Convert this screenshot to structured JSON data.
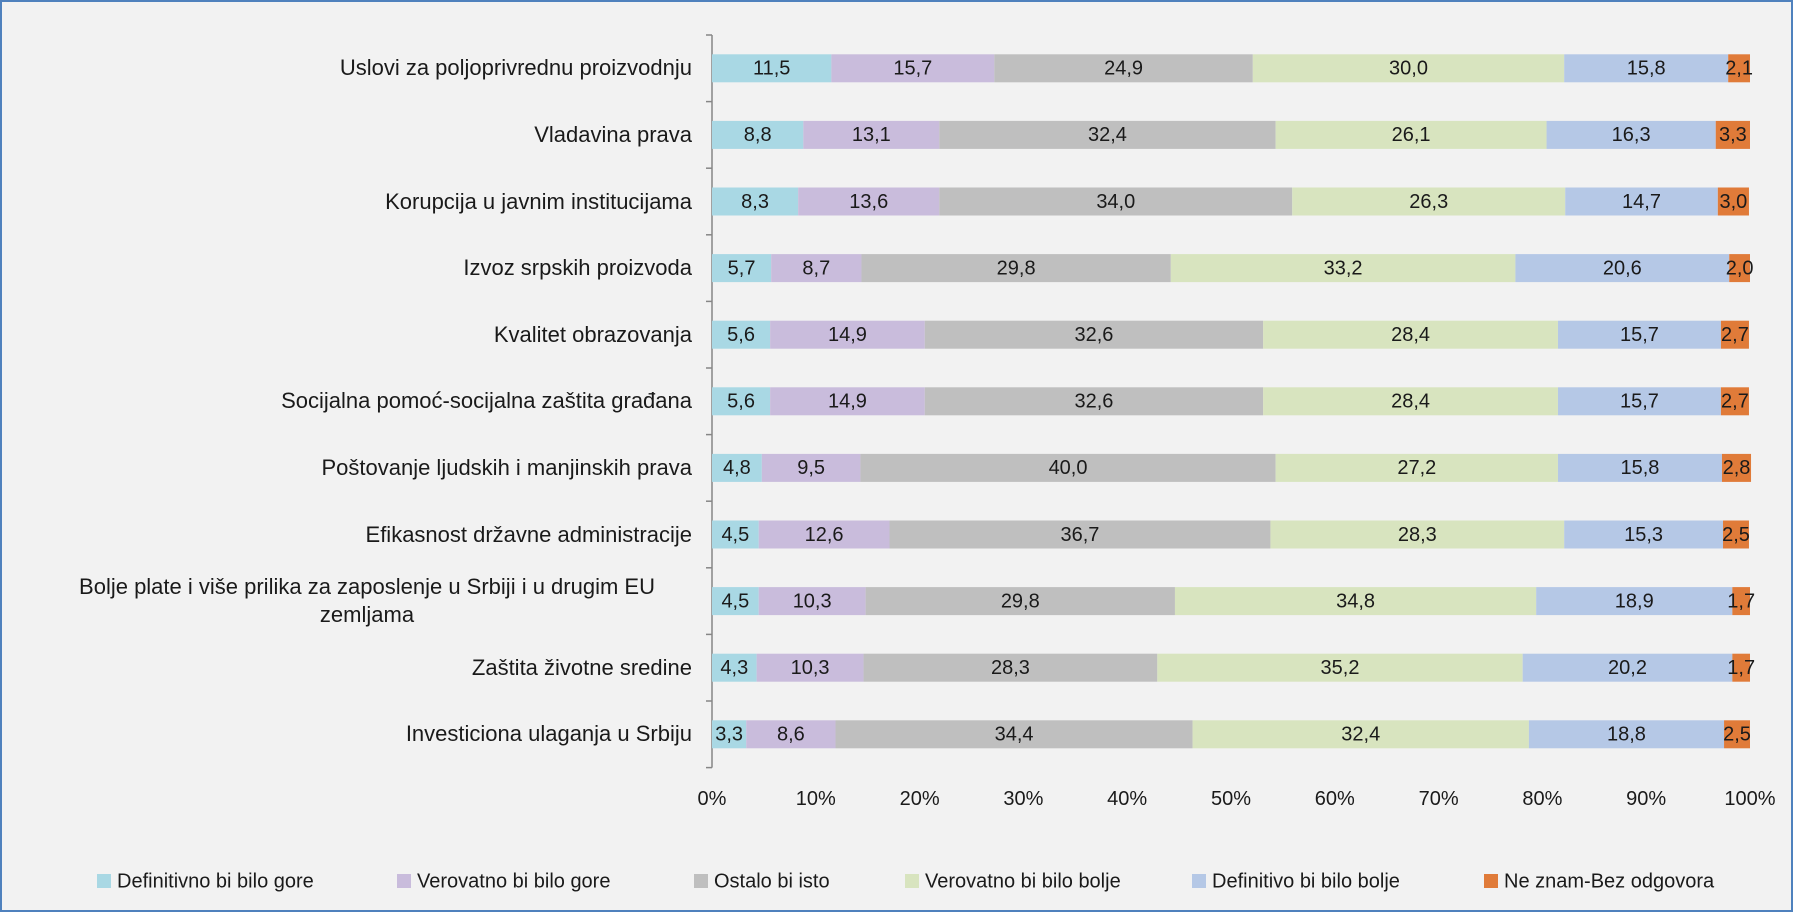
{
  "chart_data": {
    "type": "stacked-bar-horizontal",
    "categories": [
      "Uslovi za poljoprivrednu proizvodnju",
      "Vladavina prava",
      "Korupcija u javnim institucijama",
      "Izvoz srpskih proizvoda",
      "Kvalitet obrazovanja",
      "Socijalna pomoć-socijalna zaštita građana",
      "Poštovanje ljudskih i manjinskih prava",
      "Efikasnost državne administracije",
      "Bolje plate i više prilika za zaposlenje u Srbiji i u drugim EU zemljama",
      "Zaštita životne sredine",
      "Investiciona ulaganja u Srbiju"
    ],
    "series": [
      {
        "name": "Definitivno bi bilo gore",
        "color": "#a9d8e4",
        "values": [
          11.5,
          8.8,
          8.3,
          5.7,
          5.6,
          5.6,
          4.8,
          4.5,
          4.5,
          4.3,
          3.3
        ],
        "value_labels": [
          "11,5",
          "8,8",
          "8,3",
          "5,7",
          "5,6",
          "5,6",
          "4,8",
          "4,5",
          "4,5",
          "4,3",
          "3,3"
        ]
      },
      {
        "name": "Verovatno bi bilo gore",
        "color": "#c9bcdc",
        "values": [
          15.7,
          13.1,
          13.6,
          8.7,
          14.9,
          14.9,
          9.5,
          12.6,
          10.3,
          10.3,
          8.6
        ],
        "value_labels": [
          "15,7",
          "13,1",
          "13,6",
          "8,7",
          "14,9",
          "14,9",
          "9,5",
          "12,6",
          "10,3",
          "10,3",
          "8,6"
        ]
      },
      {
        "name": "Ostalo bi isto",
        "color": "#bfbfbf",
        "values": [
          24.9,
          32.4,
          34.0,
          29.8,
          32.6,
          32.6,
          40.0,
          36.7,
          29.8,
          28.3,
          34.4
        ],
        "value_labels": [
          "24,9",
          "32,4",
          "34,0",
          "29,8",
          "32,6",
          "32,6",
          "40,0",
          "36,7",
          "29,8",
          "28,3",
          "34,4"
        ]
      },
      {
        "name": "Verovatno bi bilo bolje",
        "color": "#d8e4bf",
        "values": [
          30.0,
          26.1,
          26.3,
          33.2,
          28.4,
          28.4,
          27.2,
          28.3,
          34.8,
          35.2,
          32.4
        ],
        "value_labels": [
          "30,0",
          "26,1",
          "26,3",
          "33,2",
          "28,4",
          "28,4",
          "27,2",
          "28,3",
          "34,8",
          "35,2",
          "32,4"
        ]
      },
      {
        "name": "Definitivo bi bilo bolje",
        "color": "#b5c8e6",
        "values": [
          15.8,
          16.3,
          14.7,
          20.6,
          15.7,
          15.7,
          15.8,
          15.3,
          18.9,
          20.2,
          18.8
        ],
        "value_labels": [
          "15,8",
          "16,3",
          "14,7",
          "20,6",
          "15,7",
          "15,7",
          "15,8",
          "15,3",
          "18,9",
          "20,2",
          "18,8"
        ]
      },
      {
        "name": "Ne znam-Bez odgovora",
        "color": "#e07b39",
        "values": [
          2.1,
          3.3,
          3.0,
          2.0,
          2.7,
          2.7,
          2.8,
          2.5,
          1.7,
          1.7,
          2.5
        ],
        "value_labels": [
          "2,1",
          "3,3",
          "3,0",
          "2,0",
          "2,7",
          "2,7",
          "2,8",
          "2,5",
          "1,7",
          "1,7",
          "2,5"
        ]
      }
    ],
    "xlim": [
      0,
      100
    ],
    "xticks": [
      {
        "value": 0,
        "label": "0%"
      },
      {
        "value": 10,
        "label": "10%"
      },
      {
        "value": 20,
        "label": "20%"
      },
      {
        "value": 30,
        "label": "30%"
      },
      {
        "value": 40,
        "label": "40%"
      },
      {
        "value": 50,
        "label": "50%"
      },
      {
        "value": 60,
        "label": "60%"
      },
      {
        "value": 70,
        "label": "70%"
      },
      {
        "value": 80,
        "label": "80%"
      },
      {
        "value": 90,
        "label": "90%"
      },
      {
        "value": 100,
        "label": "100%"
      }
    ],
    "legend": "bottom"
  }
}
